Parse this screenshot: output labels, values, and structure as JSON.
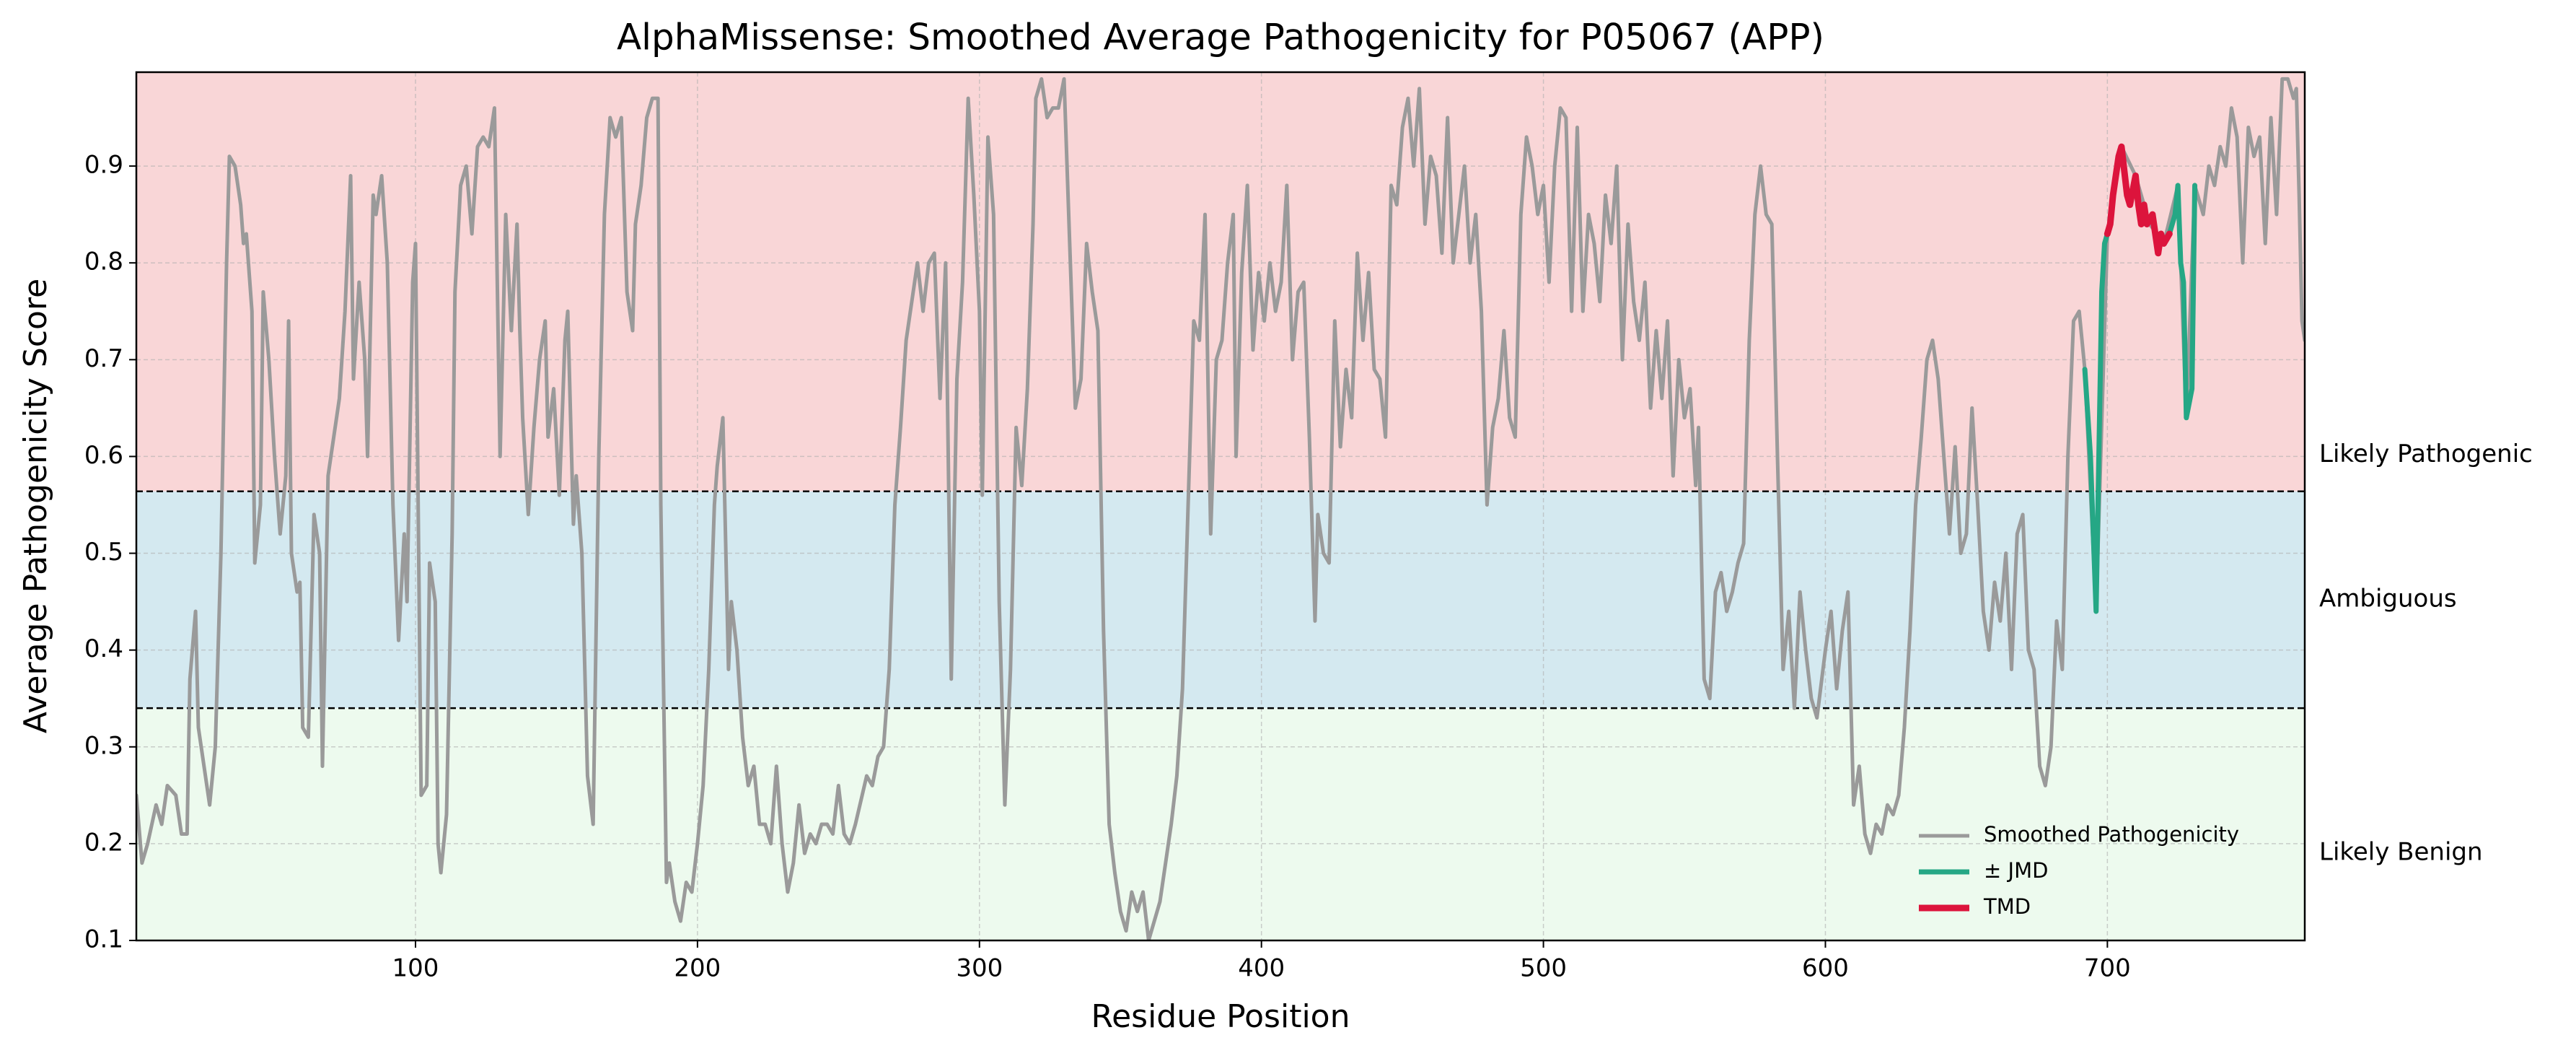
{
  "chart_data": {
    "type": "line",
    "title": "AlphaMissense: Smoothed Average Pathogenicity for P05067 (APP)",
    "x_label": "Residue Position",
    "y_label": "Average Pathogenicity Score",
    "xlim": [
      1,
      770
    ],
    "ylim": [
      0.1,
      0.997
    ],
    "xticks": [
      100,
      200,
      300,
      400,
      500,
      600,
      700
    ],
    "yticks": [
      0.1,
      0.2,
      0.3,
      0.4,
      0.5,
      0.6,
      0.7,
      0.8,
      0.9
    ],
    "grid": true,
    "legend": "lower right",
    "thresholds": [
      0.34,
      0.564
    ],
    "regions": [
      {
        "label": "Likely Benign",
        "color": "#edfaee",
        "label_color": "#006400"
      },
      {
        "label": "Ambiguous",
        "color": "#d4e9f0",
        "label_color": "#000080"
      },
      {
        "label": "Likely Pathogenic",
        "color": "#f9d6d7",
        "label_color": "#8b0000"
      }
    ],
    "series": [
      {
        "name": "Smoothed Pathogenicity",
        "color": "#9a9a9a",
        "width": 5,
        "x": [
          1,
          3,
          5,
          8,
          10,
          12,
          15,
          17,
          19,
          20,
          22,
          23,
          25,
          27,
          29,
          31,
          33,
          34,
          36,
          38,
          39,
          40,
          42,
          43,
          45,
          46,
          48,
          50,
          52,
          54,
          55,
          56,
          58,
          59,
          60,
          62,
          64,
          66,
          67,
          69,
          71,
          73,
          75,
          77,
          78,
          80,
          82,
          83,
          85,
          86,
          88,
          90,
          92,
          94,
          96,
          97,
          99,
          100,
          102,
          104,
          105,
          107,
          108,
          109,
          111,
          113,
          114,
          116,
          118,
          120,
          122,
          124,
          126,
          128,
          130,
          132,
          134,
          136,
          137,
          138,
          140,
          142,
          144,
          146,
          147,
          149,
          151,
          153,
          154,
          156,
          157,
          159,
          161,
          163,
          165,
          167,
          169,
          171,
          173,
          175,
          177,
          178,
          180,
          182,
          184,
          186,
          187,
          189,
          190,
          192,
          194,
          196,
          198,
          200,
          202,
          204,
          206,
          207,
          209,
          211,
          212,
          214,
          216,
          218,
          220,
          222,
          224,
          226,
          228,
          230,
          232,
          234,
          236,
          238,
          240,
          242,
          244,
          246,
          248,
          250,
          252,
          254,
          256,
          260,
          262,
          264,
          266,
          268,
          270,
          272,
          274,
          276,
          278,
          280,
          282,
          284,
          286,
          288,
          290,
          292,
          294,
          296,
          298,
          300,
          301,
          303,
          305,
          307,
          309,
          311,
          313,
          315,
          317,
          319,
          320,
          322,
          324,
          326,
          328,
          330,
          332,
          334,
          336,
          338,
          340,
          342,
          344,
          346,
          348,
          350,
          352,
          354,
          356,
          358,
          360,
          362,
          364,
          366,
          368,
          370,
          372,
          374,
          376,
          378,
          380,
          382,
          384,
          386,
          388,
          390,
          391,
          393,
          395,
          397,
          399,
          401,
          403,
          405,
          407,
          409,
          411,
          413,
          415,
          417,
          419,
          420,
          422,
          424,
          426,
          428,
          430,
          432,
          434,
          436,
          438,
          440,
          442,
          444,
          446,
          448,
          450,
          452,
          454,
          456,
          458,
          460,
          462,
          464,
          466,
          468,
          470,
          472,
          474,
          476,
          478,
          480,
          482,
          484,
          486,
          488,
          490,
          492,
          494,
          496,
          498,
          500,
          502,
          504,
          506,
          508,
          510,
          512,
          514,
          516,
          518,
          520,
          522,
          524,
          526,
          528,
          530,
          532,
          534,
          536,
          538,
          540,
          542,
          544,
          546,
          548,
          550,
          552,
          554,
          555,
          557,
          559,
          561,
          563,
          565,
          567,
          569,
          571,
          573,
          575,
          577,
          579,
          581,
          583,
          585,
          587,
          589,
          591,
          593,
          595,
          597,
          600,
          602,
          604,
          606,
          608,
          610,
          612,
          614,
          616,
          618,
          620,
          622,
          624,
          626,
          628,
          630,
          632,
          634,
          636,
          638,
          640,
          642,
          644,
          646,
          648,
          650,
          652,
          654,
          656,
          658,
          660,
          662,
          664,
          666,
          668,
          670,
          672,
          674,
          676,
          678,
          680,
          682,
          684,
          686,
          688,
          690,
          692,
          696,
          700,
          705,
          710,
          715,
          720,
          725,
          728,
          731,
          734,
          736,
          738,
          740,
          742,
          744,
          746,
          748,
          750,
          752,
          754,
          756,
          758,
          760,
          762,
          764,
          766,
          767,
          768,
          769,
          770
        ],
        "values": [
          0.25,
          0.18,
          0.2,
          0.24,
          0.22,
          0.26,
          0.25,
          0.21,
          0.21,
          0.37,
          0.44,
          0.32,
          0.28,
          0.24,
          0.3,
          0.5,
          0.8,
          0.91,
          0.9,
          0.86,
          0.82,
          0.83,
          0.75,
          0.49,
          0.55,
          0.77,
          0.7,
          0.6,
          0.52,
          0.58,
          0.74,
          0.5,
          0.46,
          0.47,
          0.32,
          0.31,
          0.54,
          0.5,
          0.28,
          0.58,
          0.62,
          0.66,
          0.75,
          0.89,
          0.68,
          0.78,
          0.7,
          0.6,
          0.87,
          0.85,
          0.89,
          0.8,
          0.55,
          0.41,
          0.52,
          0.45,
          0.78,
          0.82,
          0.25,
          0.26,
          0.49,
          0.45,
          0.2,
          0.17,
          0.23,
          0.52,
          0.77,
          0.88,
          0.9,
          0.83,
          0.92,
          0.93,
          0.92,
          0.96,
          0.6,
          0.85,
          0.73,
          0.84,
          0.73,
          0.64,
          0.54,
          0.63,
          0.7,
          0.74,
          0.62,
          0.67,
          0.56,
          0.72,
          0.75,
          0.53,
          0.58,
          0.5,
          0.27,
          0.22,
          0.6,
          0.85,
          0.95,
          0.93,
          0.95,
          0.77,
          0.73,
          0.84,
          0.88,
          0.95,
          0.97,
          0.97,
          0.55,
          0.16,
          0.18,
          0.14,
          0.12,
          0.16,
          0.15,
          0.2,
          0.26,
          0.38,
          0.55,
          0.59,
          0.64,
          0.38,
          0.45,
          0.4,
          0.31,
          0.26,
          0.28,
          0.22,
          0.22,
          0.2,
          0.28,
          0.2,
          0.15,
          0.18,
          0.24,
          0.19,
          0.21,
          0.2,
          0.22,
          0.22,
          0.21,
          0.26,
          0.21,
          0.2,
          0.22,
          0.27,
          0.26,
          0.29,
          0.3,
          0.38,
          0.55,
          0.63,
          0.72,
          0.76,
          0.8,
          0.75,
          0.8,
          0.81,
          0.66,
          0.8,
          0.37,
          0.68,
          0.78,
          0.97,
          0.87,
          0.75,
          0.56,
          0.93,
          0.85,
          0.45,
          0.24,
          0.38,
          0.63,
          0.57,
          0.67,
          0.84,
          0.97,
          0.99,
          0.95,
          0.96,
          0.96,
          0.99,
          0.82,
          0.65,
          0.68,
          0.82,
          0.77,
          0.73,
          0.42,
          0.22,
          0.17,
          0.13,
          0.11,
          0.15,
          0.13,
          0.15,
          0.1,
          0.12,
          0.14,
          0.18,
          0.22,
          0.27,
          0.36,
          0.55,
          0.74,
          0.72,
          0.85,
          0.52,
          0.7,
          0.72,
          0.8,
          0.85,
          0.6,
          0.79,
          0.88,
          0.71,
          0.79,
          0.74,
          0.8,
          0.75,
          0.78,
          0.88,
          0.7,
          0.77,
          0.78,
          0.62,
          0.43,
          0.54,
          0.5,
          0.49,
          0.74,
          0.61,
          0.69,
          0.64,
          0.81,
          0.72,
          0.79,
          0.69,
          0.68,
          0.62,
          0.88,
          0.86,
          0.94,
          0.97,
          0.9,
          0.98,
          0.84,
          0.91,
          0.89,
          0.81,
          0.95,
          0.8,
          0.85,
          0.9,
          0.8,
          0.85,
          0.75,
          0.55,
          0.63,
          0.66,
          0.73,
          0.64,
          0.62,
          0.85,
          0.93,
          0.9,
          0.85,
          0.88,
          0.78,
          0.9,
          0.96,
          0.95,
          0.75,
          0.94,
          0.75,
          0.85,
          0.82,
          0.76,
          0.87,
          0.82,
          0.9,
          0.7,
          0.84,
          0.76,
          0.72,
          0.78,
          0.65,
          0.73,
          0.66,
          0.74,
          0.58,
          0.7,
          0.64,
          0.67,
          0.57,
          0.63,
          0.37,
          0.35,
          0.46,
          0.48,
          0.44,
          0.46,
          0.49,
          0.51,
          0.72,
          0.85,
          0.9,
          0.85,
          0.84,
          0.6,
          0.38,
          0.44,
          0.34,
          0.46,
          0.4,
          0.35,
          0.33,
          0.4,
          0.44,
          0.36,
          0.42,
          0.46,
          0.24,
          0.28,
          0.21,
          0.19,
          0.22,
          0.21,
          0.24,
          0.23,
          0.25,
          0.32,
          0.42,
          0.55,
          0.62,
          0.7,
          0.72,
          0.68,
          0.6,
          0.52,
          0.61,
          0.5,
          0.52,
          0.65,
          0.55,
          0.44,
          0.4,
          0.47,
          0.43,
          0.5,
          0.38,
          0.52,
          0.54,
          0.4,
          0.38,
          0.28,
          0.26,
          0.3,
          0.43,
          0.38,
          0.6,
          0.74,
          0.75,
          0.69,
          0.44,
          0.83,
          0.92,
          0.89,
          0.84,
          0.82,
          0.88,
          0.64,
          0.88,
          0.85,
          0.9,
          0.88,
          0.92,
          0.9,
          0.96,
          0.93,
          0.8,
          0.94,
          0.91,
          0.93,
          0.82,
          0.95,
          0.85,
          0.99,
          0.99,
          0.97,
          0.98,
          0.87,
          0.74,
          0.72
        ]
      },
      {
        "name": "± JMD",
        "color": "#25a785",
        "width": 7,
        "x": [
          692,
          694,
          696,
          698,
          699,
          700,
          701,
          722,
          724,
          725,
          726,
          727,
          728,
          730,
          731
        ],
        "values": [
          0.69,
          0.6,
          0.44,
          0.77,
          0.82,
          0.83,
          null,
          0.83,
          0.85,
          0.88,
          0.8,
          0.78,
          0.64,
          0.67,
          0.88
        ]
      },
      {
        "name": "TMD",
        "color": "#dc143c",
        "width": 9,
        "x": [
          700,
          701,
          702,
          704,
          705,
          707,
          708,
          710,
          711,
          712,
          713,
          714,
          716,
          717,
          718,
          719,
          720,
          722
        ],
        "values": [
          0.83,
          0.84,
          0.87,
          0.91,
          0.92,
          0.87,
          0.86,
          0.89,
          0.86,
          0.84,
          0.86,
          0.84,
          0.85,
          0.83,
          0.81,
          0.83,
          0.82,
          0.83
        ]
      }
    ]
  }
}
